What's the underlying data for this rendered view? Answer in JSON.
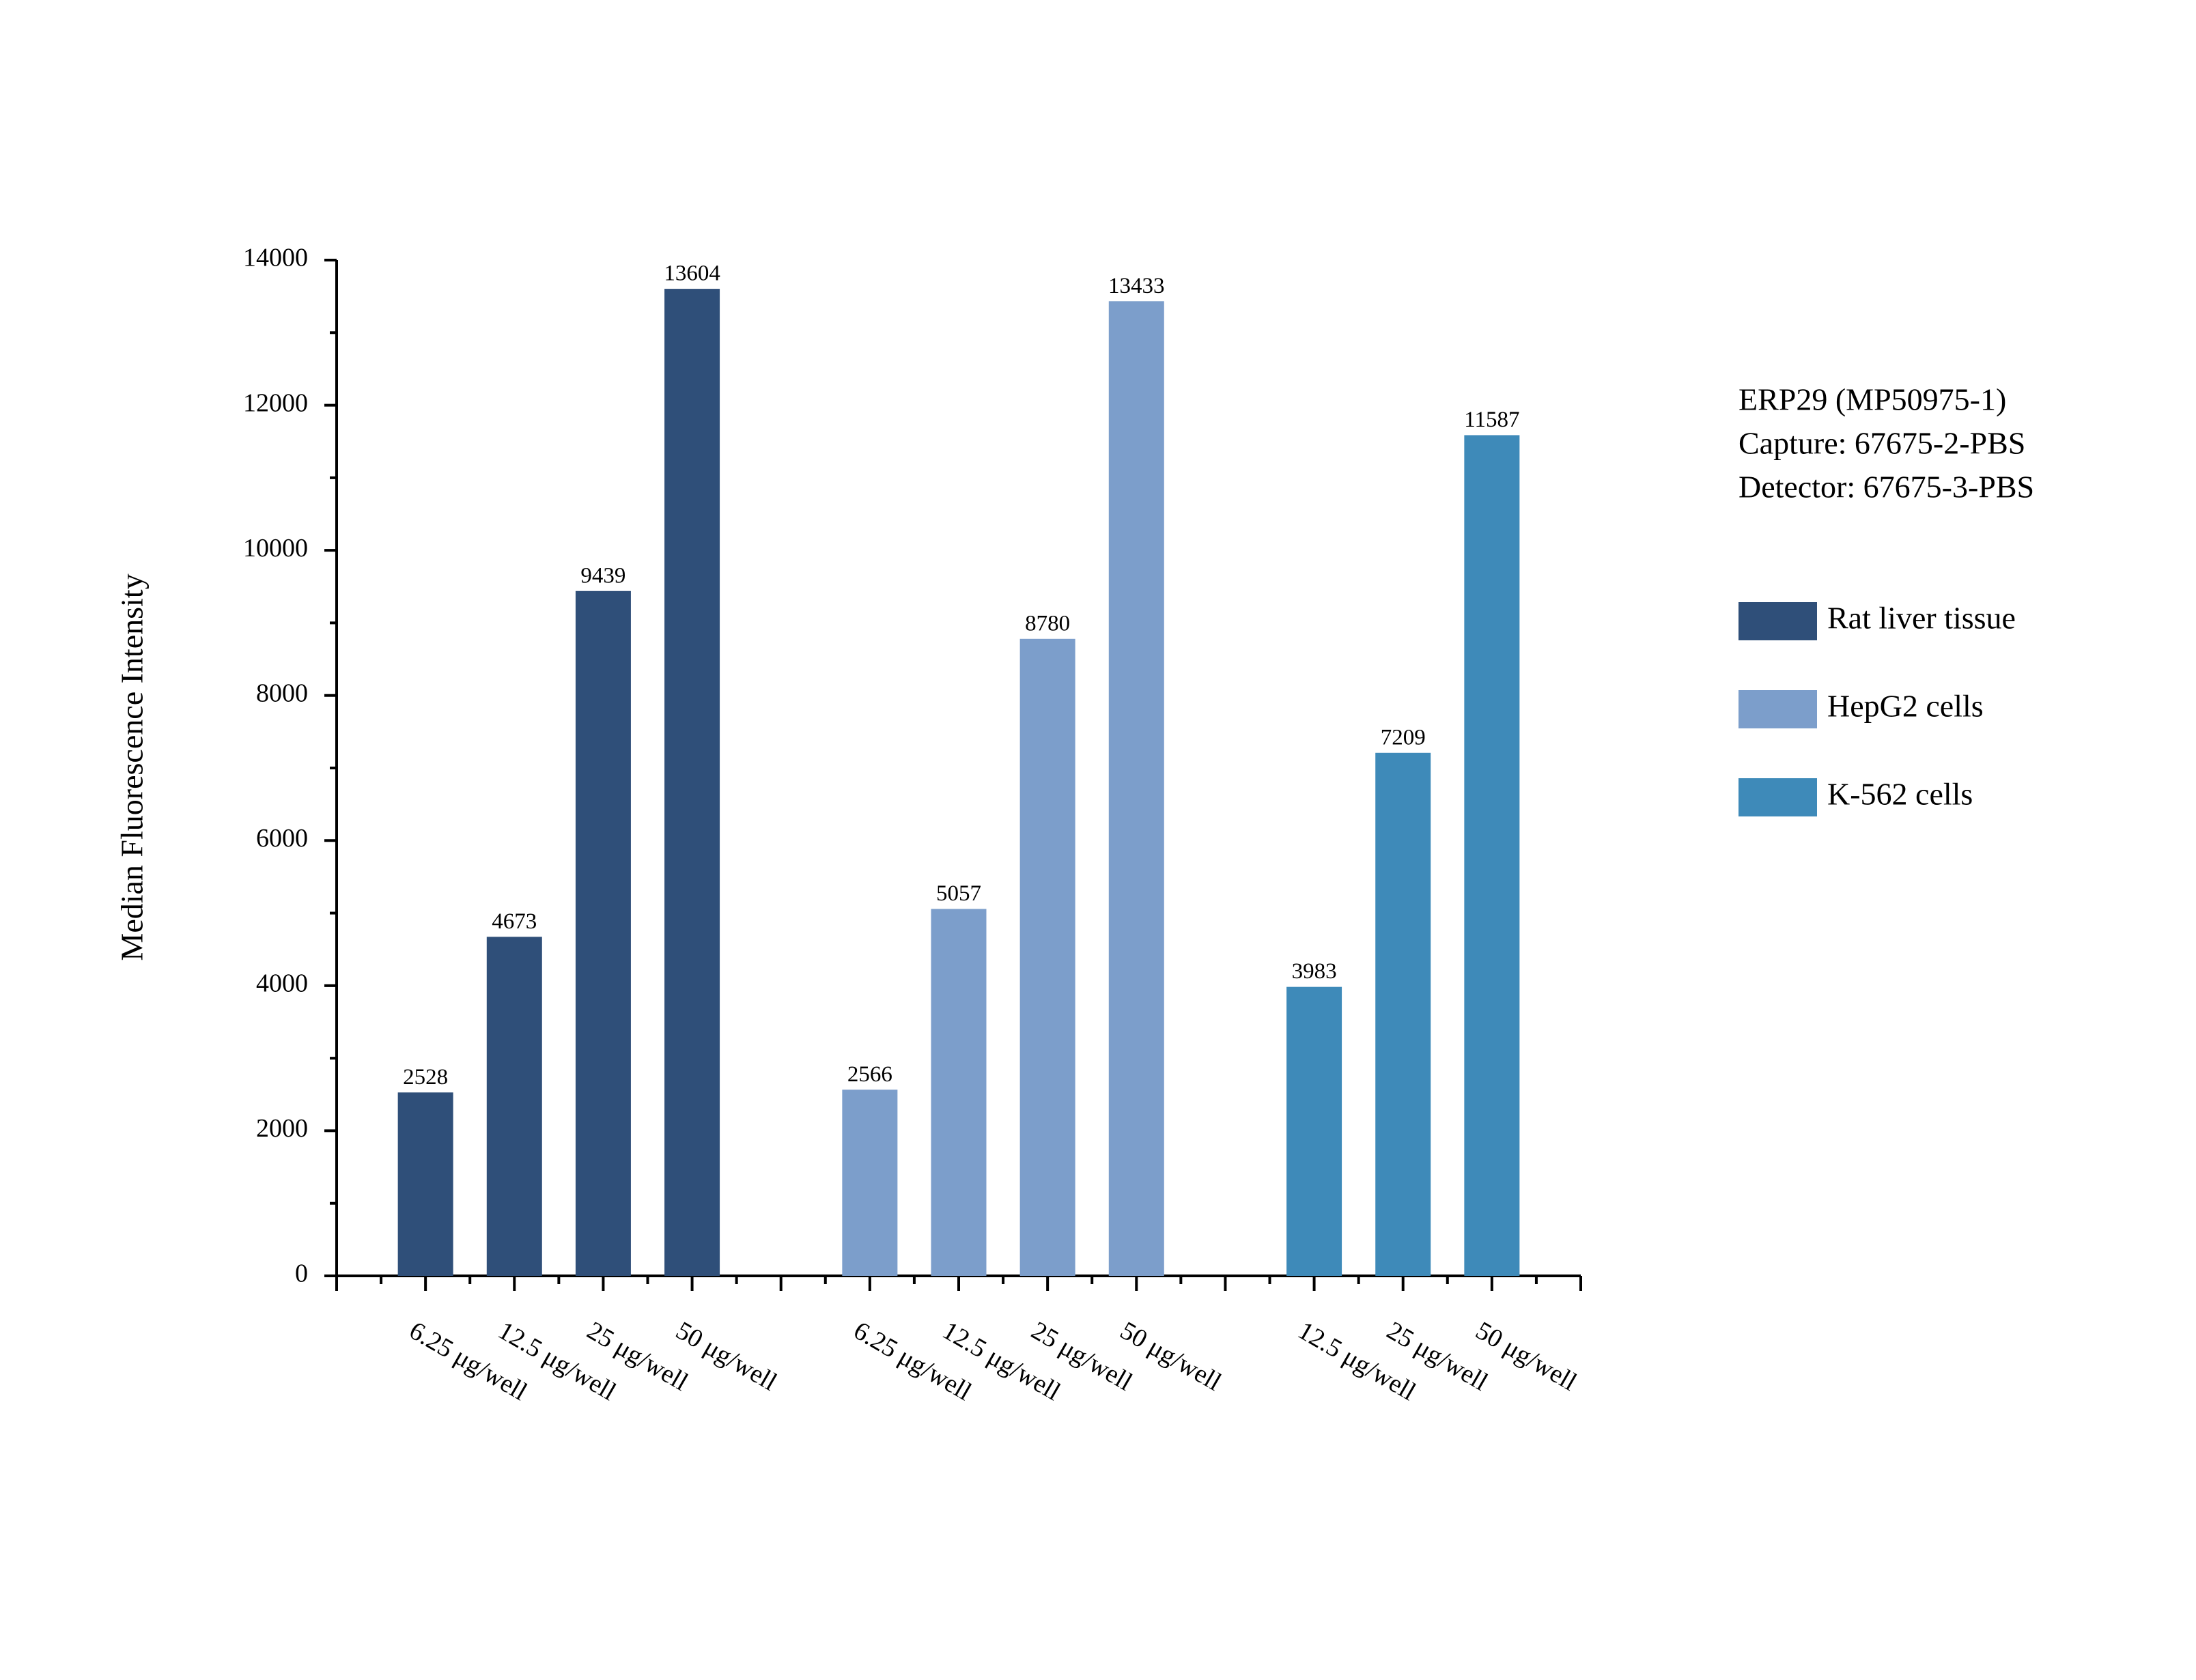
{
  "chart_data": {
    "type": "bar",
    "y_label": "Median Fluorescence Intensity",
    "annotations": [
      "ERP29 (MP50975-1)",
      "Capture: 67675-2-PBS",
      "Detector: 67675-3-PBS"
    ],
    "categories": [
      "6.25 μg/well",
      "12.5 μg/well",
      "25 μg/well",
      "50 μg/well",
      null,
      "6.25 μg/well",
      "12.5 μg/well",
      "25 μg/well",
      "50 μg/well",
      null,
      "12.5 μg/well",
      "25 μg/well",
      "50 μg/well"
    ],
    "series": [
      {
        "name": "Rat liver tissue",
        "color": "#2f4f79",
        "values": [
          2528,
          4673,
          9439,
          13604,
          null,
          null,
          null,
          null,
          null,
          null,
          null,
          null,
          null
        ]
      },
      {
        "name": "HepG2 cells",
        "color": "#7c9ecb",
        "values": [
          null,
          null,
          null,
          null,
          null,
          2566,
          5057,
          8780,
          13433,
          null,
          null,
          null,
          null
        ]
      },
      {
        "name": "K-562 cells",
        "color": "#3e8ab9",
        "values": [
          null,
          null,
          null,
          null,
          null,
          null,
          null,
          null,
          null,
          null,
          3983,
          7209,
          11587
        ]
      }
    ],
    "ylim": [
      0,
      14000
    ],
    "yticks": [
      0,
      2000,
      4000,
      6000,
      8000,
      10000,
      12000,
      14000
    ],
    "legend": "right"
  }
}
